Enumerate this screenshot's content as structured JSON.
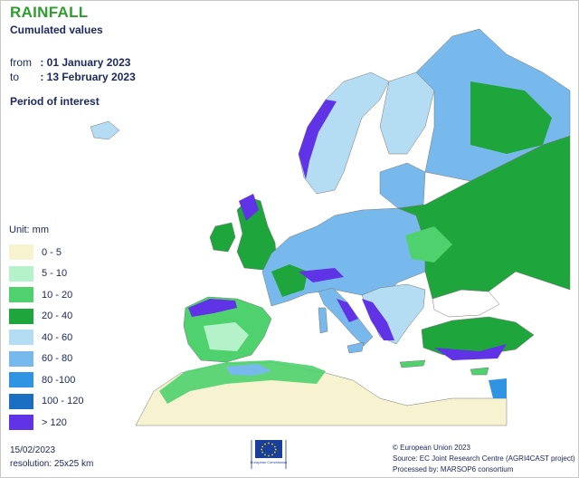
{
  "header": {
    "title": "RAINFALL",
    "subtitle": "Cumulated values",
    "from_label": "from",
    "from_value": ": 01 January 2023",
    "to_label": "to",
    "to_value": ": 13 February 2023",
    "period_label": "Period of interest"
  },
  "legend": {
    "unit_label": "Unit:  mm",
    "classes": [
      {
        "label": "0 - 5",
        "color": "#f7f2cf"
      },
      {
        "label": "5 - 10",
        "color": "#b5f1c9"
      },
      {
        "label": "10 - 20",
        "color": "#4fd16e"
      },
      {
        "label": "20 - 40",
        "color": "#1ea53b"
      },
      {
        "label": "40 - 60",
        "color": "#b4dcf3"
      },
      {
        "label": "60 - 80",
        "color": "#77b9ec"
      },
      {
        "label": "80 -100",
        "color": "#2f95e3"
      },
      {
        "label": "100 - 120",
        "color": "#1c6ec2"
      },
      {
        "label": "> 120",
        "color": "#6033e6"
      }
    ]
  },
  "footer": {
    "date": "15/02/2023",
    "resolution": "resolution:  25x25 km",
    "copyright": "© European Union 2023",
    "source": "Source: EC Joint Research Centre (AGRI4CAST project)",
    "processed": "Processed by: MARSOP6 consortium"
  },
  "logo": {
    "name": "European Commission"
  }
}
